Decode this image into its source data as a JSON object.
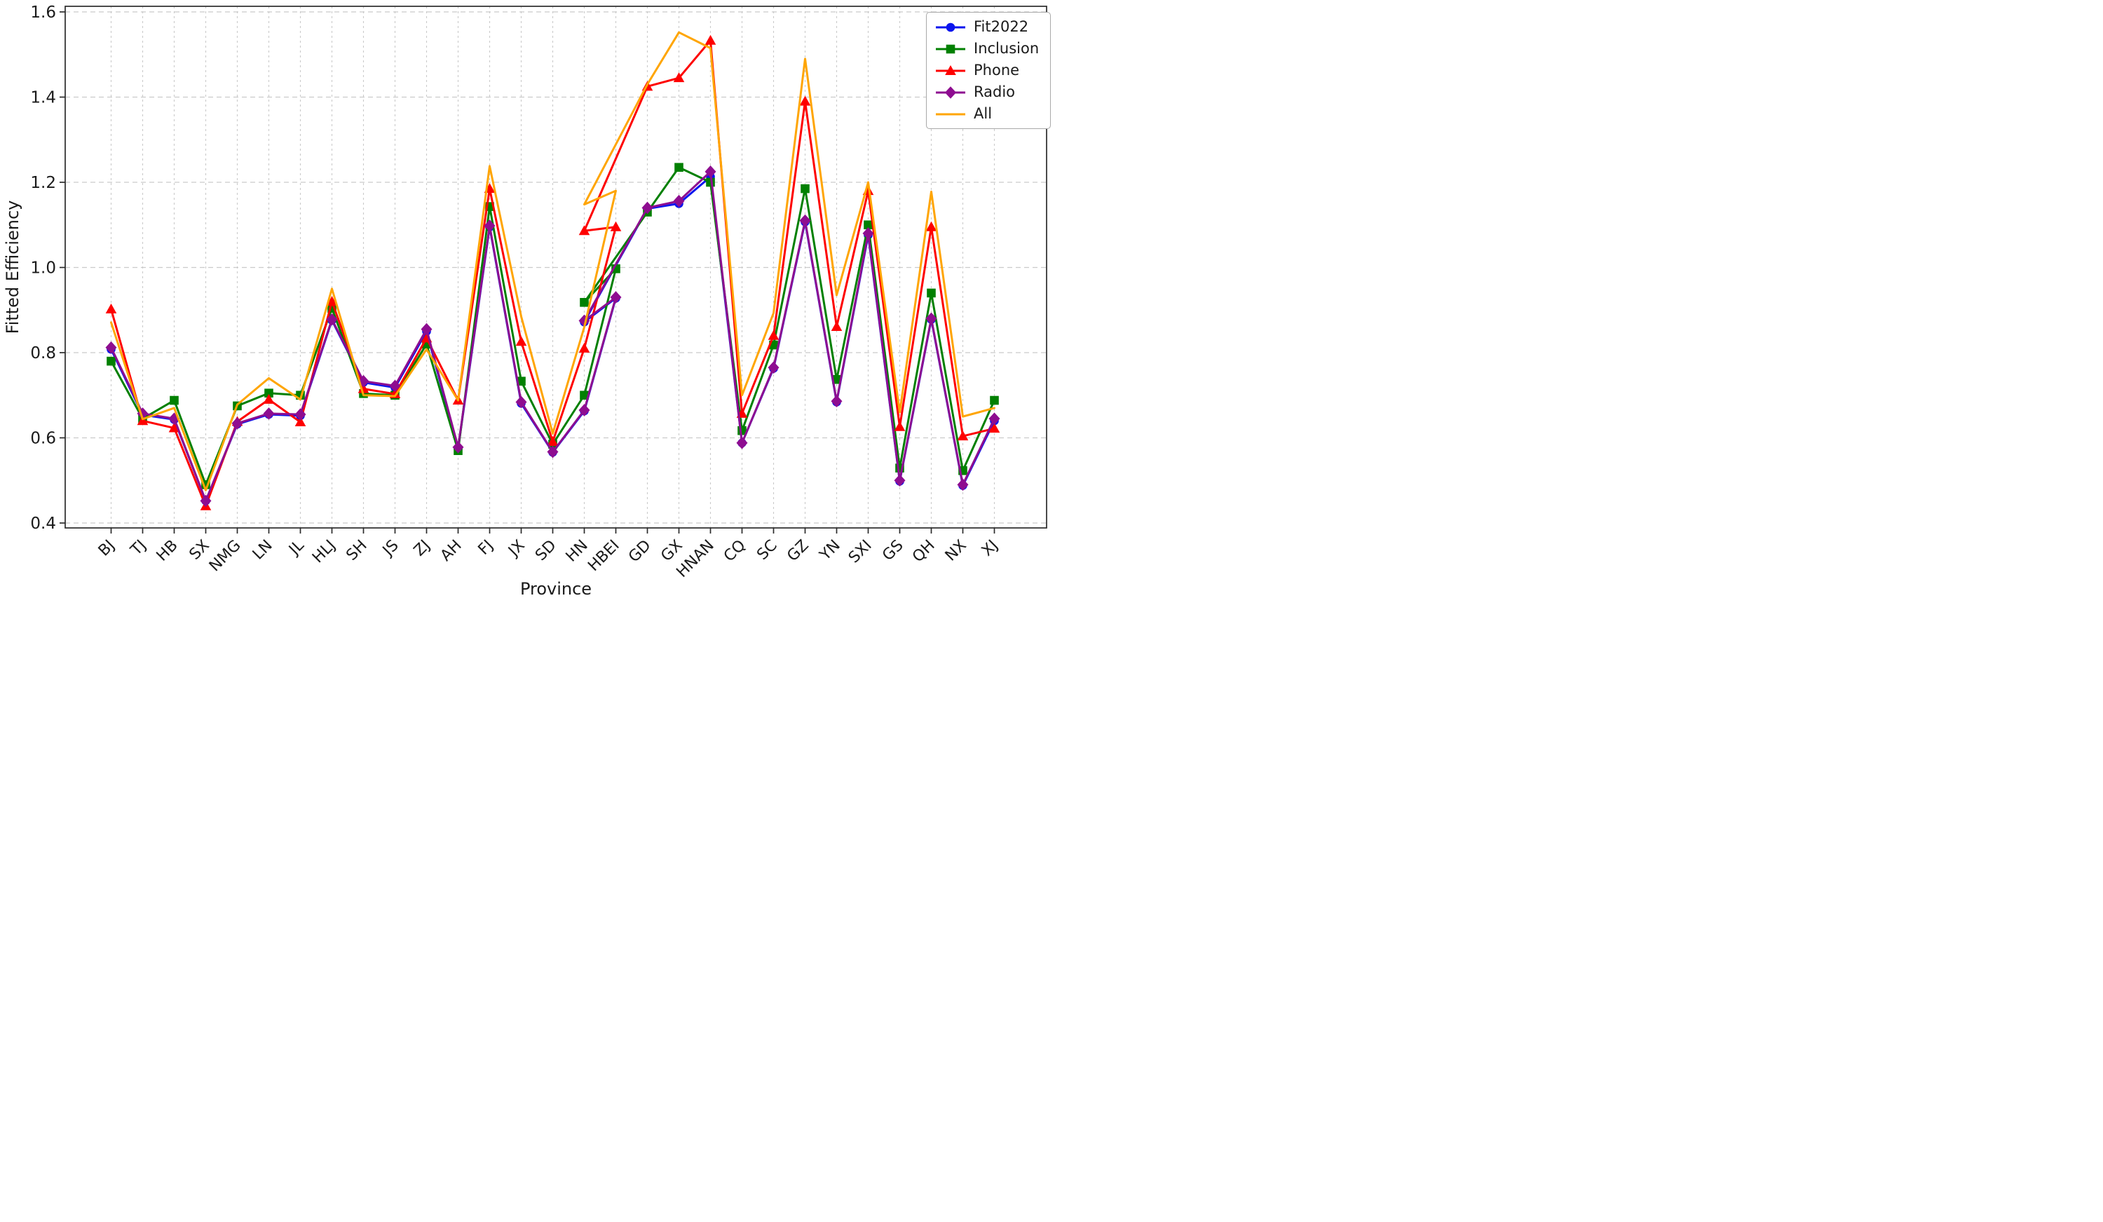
{
  "chart_data": {
    "type": "line",
    "title": "",
    "xlabel": "Province",
    "ylabel": "Fitted Efficiency",
    "ylim": [
      0.4,
      1.6
    ],
    "ytick_labels": [
      "0.4",
      "0.6",
      "0.8",
      "1.0",
      "1.2",
      "1.4",
      "1.6"
    ],
    "yticks": [
      0.4,
      0.6,
      0.8,
      1.0,
      1.2,
      1.4,
      1.6
    ],
    "grid": true,
    "legend_position": "upper right",
    "categories": [
      "BJ",
      "TJ",
      "HB",
      "SX",
      "NMG",
      "LN",
      "JL",
      "HLJ",
      "SH",
      "JS",
      "ZJ",
      "AH",
      "FJ",
      "JX",
      "SD",
      "HN",
      "HBEI",
      "GD",
      "GX",
      "HNAN",
      "CQ",
      "SC",
      "GZ",
      "YN",
      "SXI",
      "GS",
      "QH",
      "NX",
      "XJ"
    ],
    "path_note": "Each series point is [category_index, value]. Index 15 (HN) occurs twice per series (once before and once after HBEI), which creates the back-tracking zigzag visible between SD and GD in the original figure.",
    "grid_color": "#cbcbcb",
    "axis_color": "#2b2b2b",
    "text_color": "#1a1a1a",
    "series": [
      {
        "name": "Fit2022",
        "color": "#0b15ee",
        "marker": "circle",
        "points": [
          [
            0,
            0.808
          ],
          [
            1,
            0.654
          ],
          [
            2,
            0.643
          ],
          [
            3,
            0.452
          ],
          [
            4,
            0.632
          ],
          [
            5,
            0.655
          ],
          [
            6,
            0.652
          ],
          [
            7,
            0.876
          ],
          [
            8,
            0.73
          ],
          [
            9,
            0.718
          ],
          [
            10,
            0.85
          ],
          [
            11,
            0.575
          ],
          [
            12,
            1.095
          ],
          [
            13,
            0.681
          ],
          [
            14,
            0.566
          ],
          [
            15,
            0.663
          ],
          [
            16,
            0.928
          ],
          [
            15,
            0.872
          ],
          [
            17,
            1.138
          ],
          [
            18,
            1.15
          ],
          [
            19,
            1.213
          ],
          [
            20,
            0.588
          ],
          [
            21,
            0.763
          ],
          [
            22,
            1.107
          ],
          [
            23,
            0.684
          ],
          [
            24,
            1.076
          ],
          [
            25,
            0.498
          ],
          [
            26,
            0.878
          ],
          [
            27,
            0.488
          ],
          [
            28,
            0.64
          ]
        ]
      },
      {
        "name": "Inclusion",
        "color": "#018001",
        "marker": "square",
        "points": [
          [
            0,
            0.78
          ],
          [
            1,
            0.645
          ],
          [
            2,
            0.688
          ],
          [
            3,
            0.49
          ],
          [
            4,
            0.675
          ],
          [
            5,
            0.705
          ],
          [
            6,
            0.7
          ],
          [
            7,
            0.904
          ],
          [
            8,
            0.704
          ],
          [
            9,
            0.7
          ],
          [
            10,
            0.82
          ],
          [
            11,
            0.57
          ],
          [
            12,
            1.143
          ],
          [
            13,
            0.733
          ],
          [
            14,
            0.585
          ],
          [
            15,
            0.7
          ],
          [
            16,
            0.997
          ],
          [
            15,
            0.918
          ],
          [
            17,
            1.13
          ],
          [
            18,
            1.235
          ],
          [
            19,
            1.2
          ],
          [
            20,
            0.617
          ],
          [
            21,
            0.818
          ],
          [
            22,
            1.185
          ],
          [
            23,
            0.737
          ],
          [
            24,
            1.1
          ],
          [
            25,
            0.529
          ],
          [
            26,
            0.94
          ],
          [
            27,
            0.523
          ],
          [
            28,
            0.688
          ]
        ]
      },
      {
        "name": "Phone",
        "color": "#fe0000",
        "marker": "triangle",
        "points": [
          [
            0,
            0.902
          ],
          [
            1,
            0.64
          ],
          [
            2,
            0.623
          ],
          [
            3,
            0.44
          ],
          [
            4,
            0.638
          ],
          [
            5,
            0.69
          ],
          [
            6,
            0.637
          ],
          [
            7,
            0.92
          ],
          [
            8,
            0.715
          ],
          [
            9,
            0.703
          ],
          [
            10,
            0.834
          ],
          [
            11,
            0.688
          ],
          [
            12,
            1.185
          ],
          [
            13,
            0.826
          ],
          [
            14,
            0.591
          ],
          [
            15,
            0.81
          ],
          [
            16,
            1.095
          ],
          [
            15,
            1.086
          ],
          [
            17,
            1.425
          ],
          [
            18,
            1.445
          ],
          [
            19,
            1.533
          ],
          [
            20,
            0.657
          ],
          [
            21,
            0.84
          ],
          [
            22,
            1.39
          ],
          [
            23,
            0.861
          ],
          [
            24,
            1.18
          ],
          [
            25,
            0.626
          ],
          [
            26,
            1.095
          ],
          [
            27,
            0.604
          ],
          [
            28,
            0.622
          ]
        ]
      },
      {
        "name": "Radio",
        "color": "#8e0d90",
        "marker": "diamond",
        "points": [
          [
            0,
            0.812
          ],
          [
            1,
            0.657
          ],
          [
            2,
            0.645
          ],
          [
            3,
            0.452
          ],
          [
            4,
            0.634
          ],
          [
            5,
            0.657
          ],
          [
            6,
            0.655
          ],
          [
            7,
            0.878
          ],
          [
            8,
            0.733
          ],
          [
            9,
            0.722
          ],
          [
            10,
            0.855
          ],
          [
            11,
            0.578
          ],
          [
            12,
            1.098
          ],
          [
            13,
            0.684
          ],
          [
            14,
            0.567
          ],
          [
            15,
            0.665
          ],
          [
            16,
            0.93
          ],
          [
            15,
            0.875
          ],
          [
            17,
            1.14
          ],
          [
            18,
            1.156
          ],
          [
            19,
            1.225
          ],
          [
            20,
            0.588
          ],
          [
            21,
            0.765
          ],
          [
            22,
            1.11
          ],
          [
            23,
            0.686
          ],
          [
            24,
            1.08
          ],
          [
            25,
            0.5
          ],
          [
            26,
            0.88
          ],
          [
            27,
            0.49
          ],
          [
            28,
            0.645
          ]
        ]
      },
      {
        "name": "All",
        "color": "#ffa503",
        "marker": "none",
        "points": [
          [
            0,
            0.871
          ],
          [
            1,
            0.644
          ],
          [
            2,
            0.67
          ],
          [
            3,
            0.477
          ],
          [
            4,
            0.678
          ],
          [
            5,
            0.74
          ],
          [
            6,
            0.69
          ],
          [
            7,
            0.95
          ],
          [
            8,
            0.7
          ],
          [
            9,
            0.698
          ],
          [
            10,
            0.808
          ],
          [
            11,
            0.688
          ],
          [
            12,
            1.238
          ],
          [
            13,
            0.885
          ],
          [
            14,
            0.61
          ],
          [
            15,
            0.86
          ],
          [
            16,
            1.18
          ],
          [
            15,
            1.148
          ],
          [
            17,
            1.43
          ],
          [
            18,
            1.552
          ],
          [
            19,
            1.515
          ],
          [
            20,
            0.7
          ],
          [
            21,
            0.893
          ],
          [
            22,
            1.49
          ],
          [
            23,
            0.935
          ],
          [
            24,
            1.2
          ],
          [
            25,
            0.66
          ],
          [
            26,
            1.178
          ],
          [
            27,
            0.65
          ],
          [
            28,
            0.67
          ]
        ]
      }
    ]
  }
}
